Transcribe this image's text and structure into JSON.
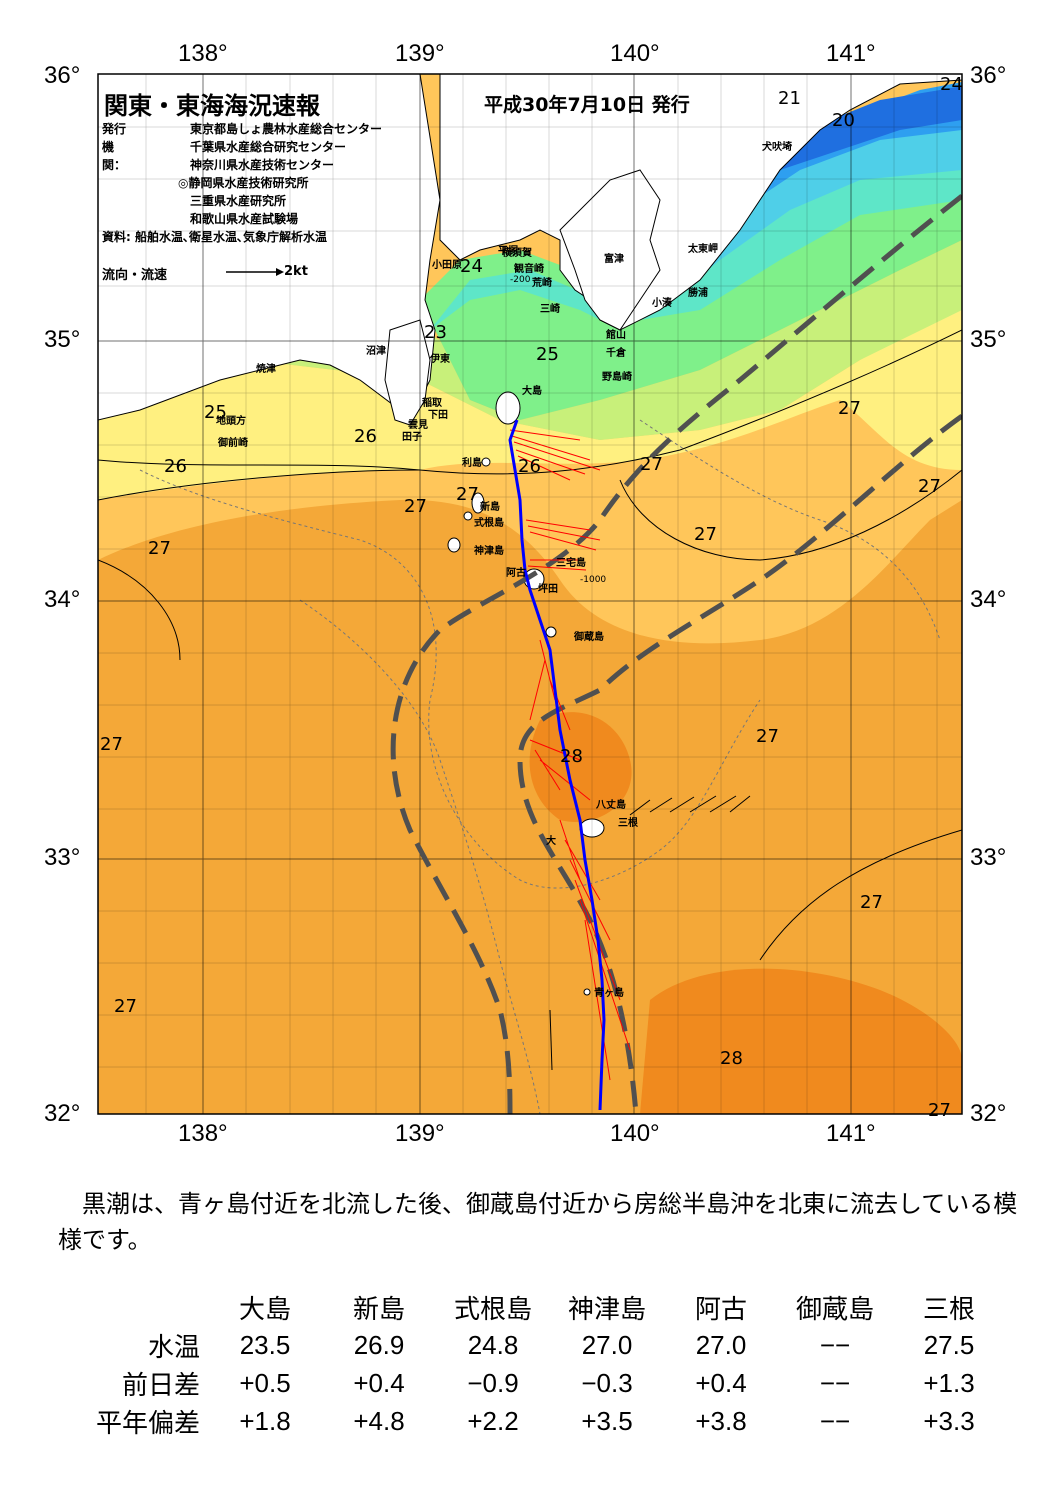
{
  "header": {
    "title": "関東・東海海況速報",
    "date": "平成30年7月10日 発行",
    "issuer_label": "発行機関：",
    "issuers": [
      "東京都島しょ農林水産総合センター",
      "千葉県水産総合研究センター",
      "神奈川県水産技術センター",
      "◎静岡県水産技術研究所",
      "三重県水産研究所",
      "和歌山県水産試験場"
    ],
    "source": "資料: 船舶水温､衛星水温､気象庁解析水温",
    "legend_label": "流向・流速",
    "legend_unit": "2kt"
  },
  "axes": {
    "lon_top": [
      "138°",
      "139°",
      "140°",
      "141°"
    ],
    "lon_bottom": [
      "138°",
      "139°",
      "140°",
      "141°"
    ],
    "lat_left": [
      "36°",
      "35°",
      "34°",
      "33°",
      "32°"
    ],
    "lat_right": [
      "36°",
      "35°",
      "34°",
      "33°",
      "32°"
    ]
  },
  "colors": {
    "sst_20": "#1f6fe0",
    "sst_21": "#2e9ff0",
    "sst_22": "#4fcfe8",
    "sst_23": "#5ee6c8",
    "sst_24": "#7ff08a",
    "sst_25": "#c8f07a",
    "sst_26": "#fff080",
    "sst_27": "#ffc65a",
    "sst_27_5": "#f4a838",
    "sst_28": "#f08a1e",
    "land": "#ffffff",
    "current": "#0000ff",
    "vectors": "#ff0000",
    "kuroshio_axis": "#505050"
  },
  "place_names": [
    "大島",
    "利島",
    "新島",
    "式根島",
    "神津島",
    "三宅島",
    "阿古",
    "坪田",
    "御蔵島",
    "八丈島",
    "三根",
    "大",
    "青ヶ島",
    "稲取",
    "下田",
    "雲見",
    "田子",
    "沼津",
    "伊東",
    "焼津",
    "御前崎",
    "地頭方",
    "小田原",
    "平塚",
    "横須賀",
    "観音崎",
    "荒崎",
    "三崎",
    "富津",
    "館山",
    "千倉",
    "野島崎",
    "小湊",
    "勝浦",
    "太東岬",
    "犬吠埼"
  ],
  "sst_labels": [
    "20",
    "21",
    "24",
    "24",
    "23",
    "25",
    "25",
    "26",
    "26",
    "26",
    "27",
    "27",
    "27",
    "27",
    "27",
    "27",
    "27",
    "27",
    "27",
    "27",
    "27",
    "28",
    "28",
    "27"
  ],
  "depth_labels": [
    "-200",
    "-1000"
  ],
  "summary": "黒潮は、青ヶ島付近を北流した後、御蔵島付近から房総半島沖を北東に流去している模様です。",
  "table": {
    "columns": [
      "大島",
      "新島",
      "式根島",
      "神津島",
      "阿古",
      "御蔵島",
      "三根"
    ],
    "rows": [
      {
        "label": "水温",
        "values": [
          "23.5",
          "26.9",
          "24.8",
          "27.0",
          "27.0",
          "−−",
          "27.5"
        ]
      },
      {
        "label": "前日差",
        "values": [
          "+0.5",
          "+0.4",
          "−0.9",
          "−0.3",
          "+0.4",
          "−−",
          "+1.3"
        ]
      },
      {
        "label": "平年偏差",
        "values": [
          "+1.8",
          "+4.8",
          "+2.2",
          "+3.5",
          "+3.8",
          "−−",
          "+3.3"
        ]
      }
    ]
  }
}
